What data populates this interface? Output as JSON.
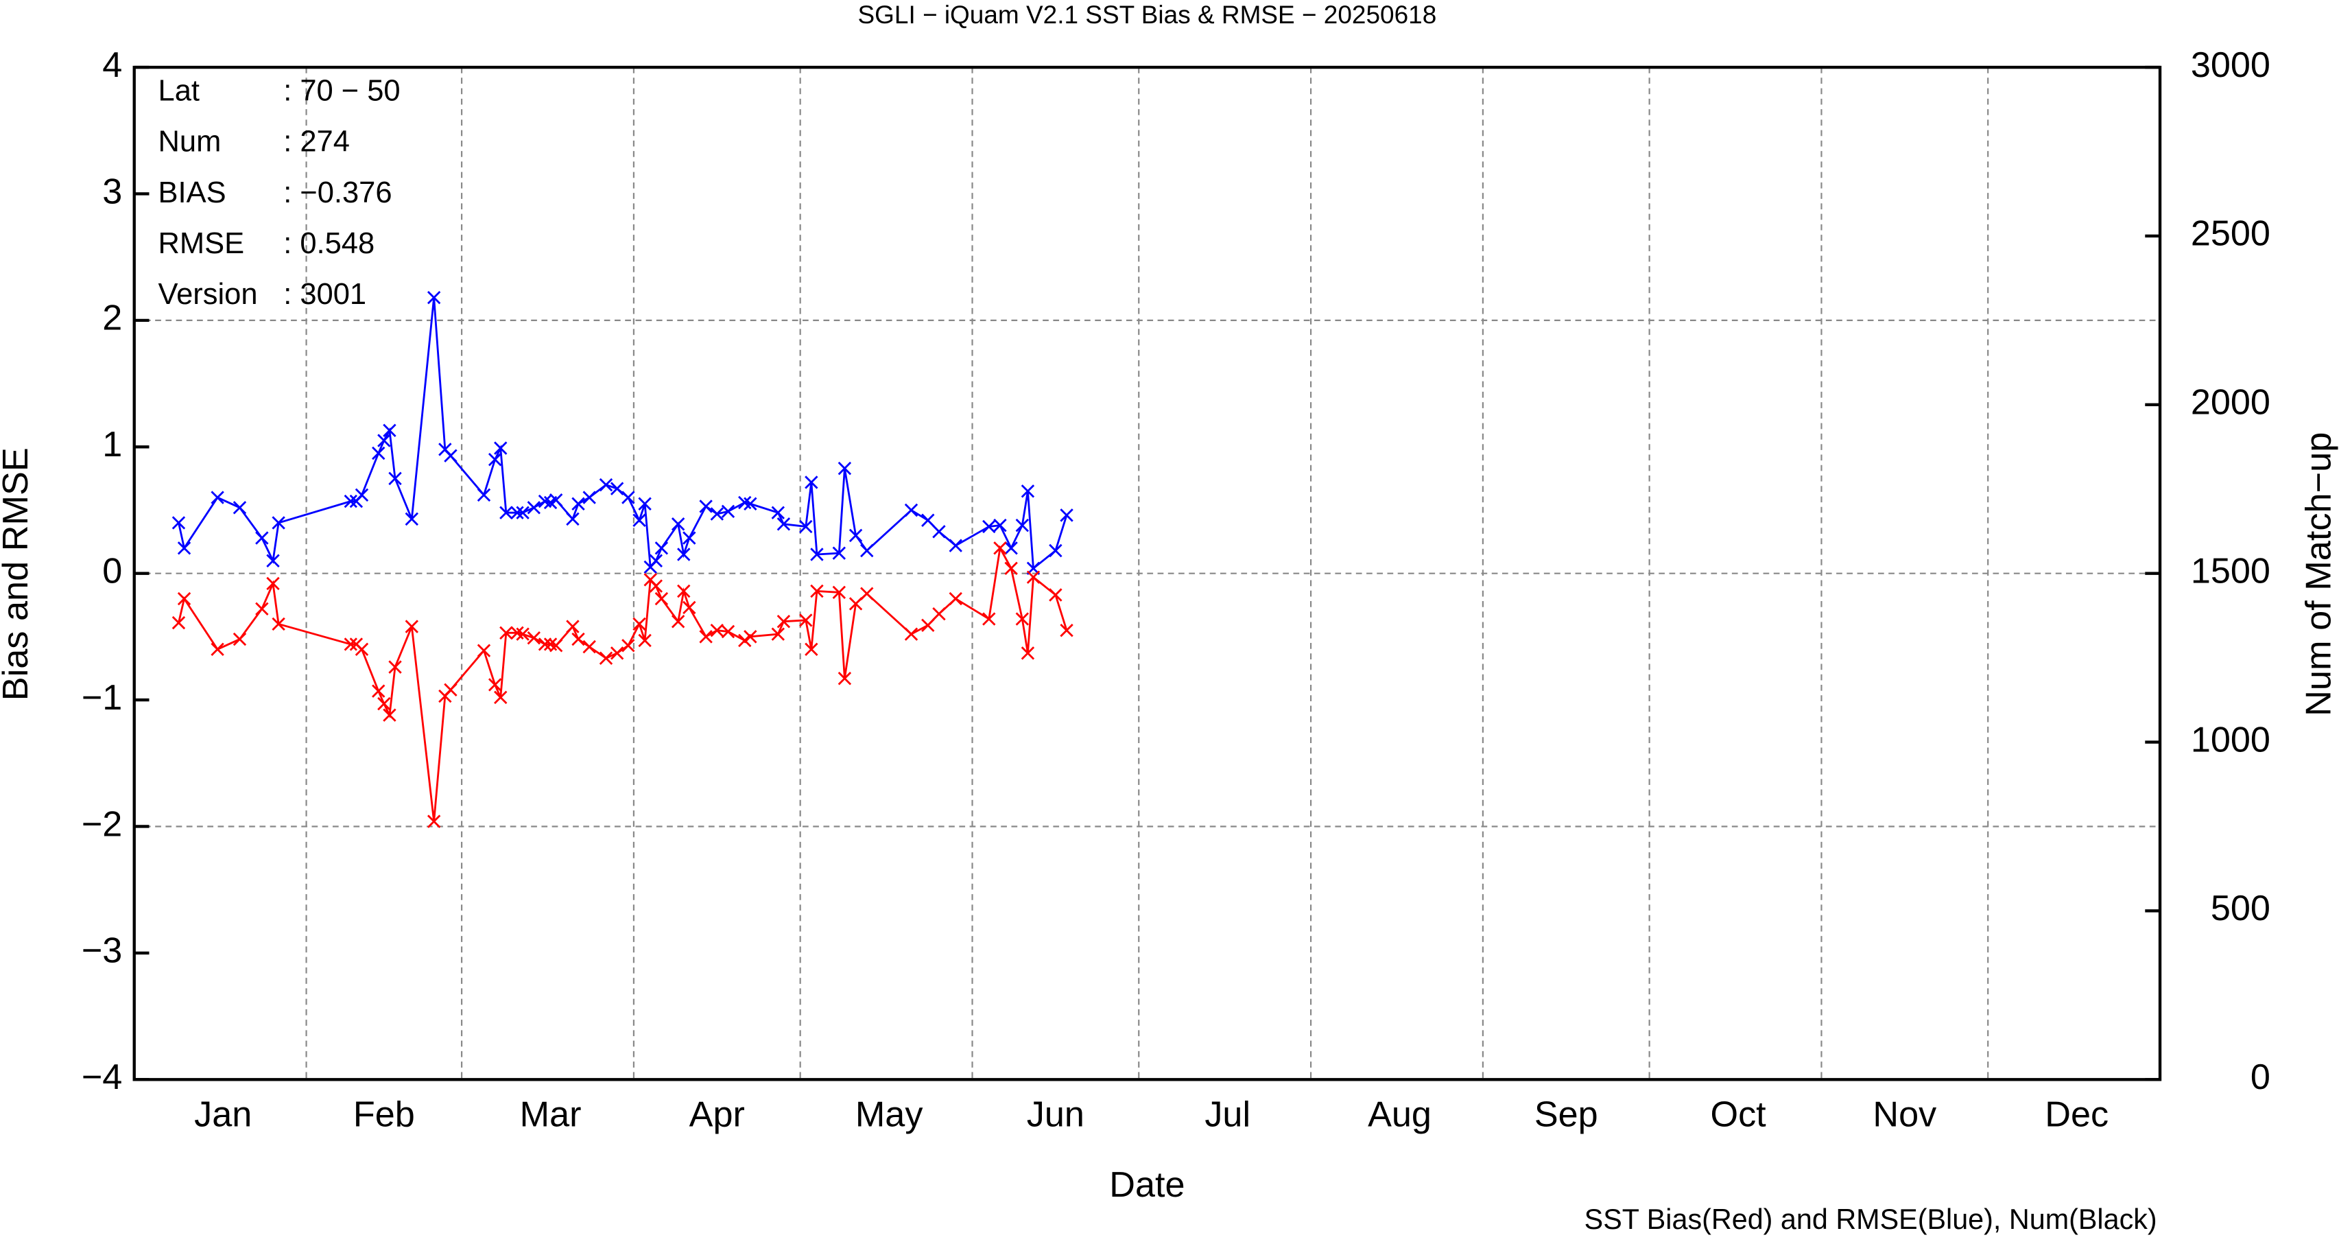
{
  "chart_data": {
    "type": "line",
    "title": "SGLI − iQuam V2.1 SST Bias & RMSE  − 20250618",
    "xlabel": "Date",
    "ylabel": "Bias and RMSE",
    "y2label": "Num of Match−up",
    "footer": "SST Bias(Red) and RMSE(Blue), Num(Black)",
    "annotations": [
      [
        "Lat",
        ": 70 − 50"
      ],
      [
        "Num",
        ": 274"
      ],
      [
        "BIAS",
        ": −0.376"
      ],
      [
        "RMSE",
        ": 0.548"
      ],
      [
        "Version",
        ": 3001"
      ]
    ],
    "x": [
      8,
      9,
      15,
      19,
      23,
      25,
      26,
      39,
      40,
      41,
      44,
      45,
      46,
      47,
      50,
      54,
      56,
      57,
      63,
      65,
      66,
      67,
      69,
      70,
      72,
      74,
      75,
      76,
      79,
      80,
      82,
      85,
      87,
      89,
      91,
      92,
      93,
      94,
      95,
      98,
      99,
      100,
      103,
      105,
      107,
      110,
      111,
      116,
      117,
      121,
      122,
      123,
      127,
      128,
      130,
      132,
      140,
      143,
      145,
      148,
      154,
      156,
      158,
      160,
      161,
      162,
      166,
      168
    ],
    "series": [
      {
        "name": "RMSE",
        "color": "#0000ff",
        "values": [
          0.4,
          0.2,
          0.6,
          0.52,
          0.28,
          0.1,
          0.4,
          0.57,
          0.57,
          0.62,
          0.95,
          1.05,
          1.13,
          0.75,
          0.43,
          2.18,
          0.98,
          0.93,
          0.62,
          0.9,
          0.99,
          0.48,
          0.48,
          0.48,
          0.52,
          0.57,
          0.56,
          0.58,
          0.43,
          0.55,
          0.6,
          0.7,
          0.67,
          0.6,
          0.42,
          0.55,
          0.05,
          0.1,
          0.2,
          0.39,
          0.15,
          0.28,
          0.53,
          0.47,
          0.49,
          0.56,
          0.55,
          0.48,
          0.39,
          0.37,
          0.72,
          0.15,
          0.16,
          0.83,
          0.3,
          0.18,
          0.5,
          0.42,
          0.33,
          0.22,
          0.37,
          0.38,
          0.2,
          0.38,
          0.65,
          0.04,
          0.18,
          0.46
        ]
      },
      {
        "name": "Bias",
        "color": "#ff0000",
        "values": [
          -0.39,
          -0.2,
          -0.6,
          -0.52,
          -0.28,
          -0.08,
          -0.4,
          -0.56,
          -0.56,
          -0.6,
          -0.93,
          -1.03,
          -1.12,
          -0.74,
          -0.42,
          -1.96,
          -0.97,
          -0.92,
          -0.61,
          -0.88,
          -0.98,
          -0.47,
          -0.47,
          -0.48,
          -0.51,
          -0.56,
          -0.56,
          -0.57,
          -0.42,
          -0.52,
          -0.58,
          -0.67,
          -0.63,
          -0.57,
          -0.4,
          -0.53,
          -0.05,
          -0.1,
          -0.2,
          -0.38,
          -0.14,
          -0.27,
          -0.5,
          -0.45,
          -0.46,
          -0.53,
          -0.5,
          -0.48,
          -0.38,
          -0.37,
          -0.6,
          -0.14,
          -0.15,
          -0.83,
          -0.24,
          -0.16,
          -0.48,
          -0.41,
          -0.32,
          -0.2,
          -0.36,
          0.2,
          0.04,
          -0.36,
          -0.63,
          -0.03,
          -0.17,
          -0.45
        ]
      }
    ],
    "xlim": [
      0,
      365
    ],
    "xticks": [
      {
        "value": 16,
        "label": "Jan"
      },
      {
        "value": 45,
        "label": "Feb"
      },
      {
        "value": 75,
        "label": "Mar"
      },
      {
        "value": 105,
        "label": "Apr"
      },
      {
        "value": 136,
        "label": "May"
      },
      {
        "value": 166,
        "label": "Jun"
      },
      {
        "value": 197,
        "label": "Jul"
      },
      {
        "value": 228,
        "label": "Aug"
      },
      {
        "value": 258,
        "label": "Sep"
      },
      {
        "value": 289,
        "label": "Oct"
      },
      {
        "value": 319,
        "label": "Nov"
      },
      {
        "value": 350,
        "label": "Dec"
      }
    ],
    "xgrid": [
      31,
      59,
      90,
      120,
      151,
      181,
      212,
      243,
      273,
      304,
      334
    ],
    "ylim": [
      -4,
      4
    ],
    "yticks": [
      {
        "value": -4,
        "label": "−4"
      },
      {
        "value": -3,
        "label": "−3"
      },
      {
        "value": -2,
        "label": "−2"
      },
      {
        "value": -1,
        "label": "−1"
      },
      0,
      1,
      2,
      3,
      4
    ],
    "ygrid": [
      -2,
      0,
      2
    ],
    "y2lim": [
      0,
      3000
    ],
    "y2ticks": [
      0,
      500,
      1000,
      1500,
      2000,
      2500,
      3000
    ],
    "grid": true
  }
}
